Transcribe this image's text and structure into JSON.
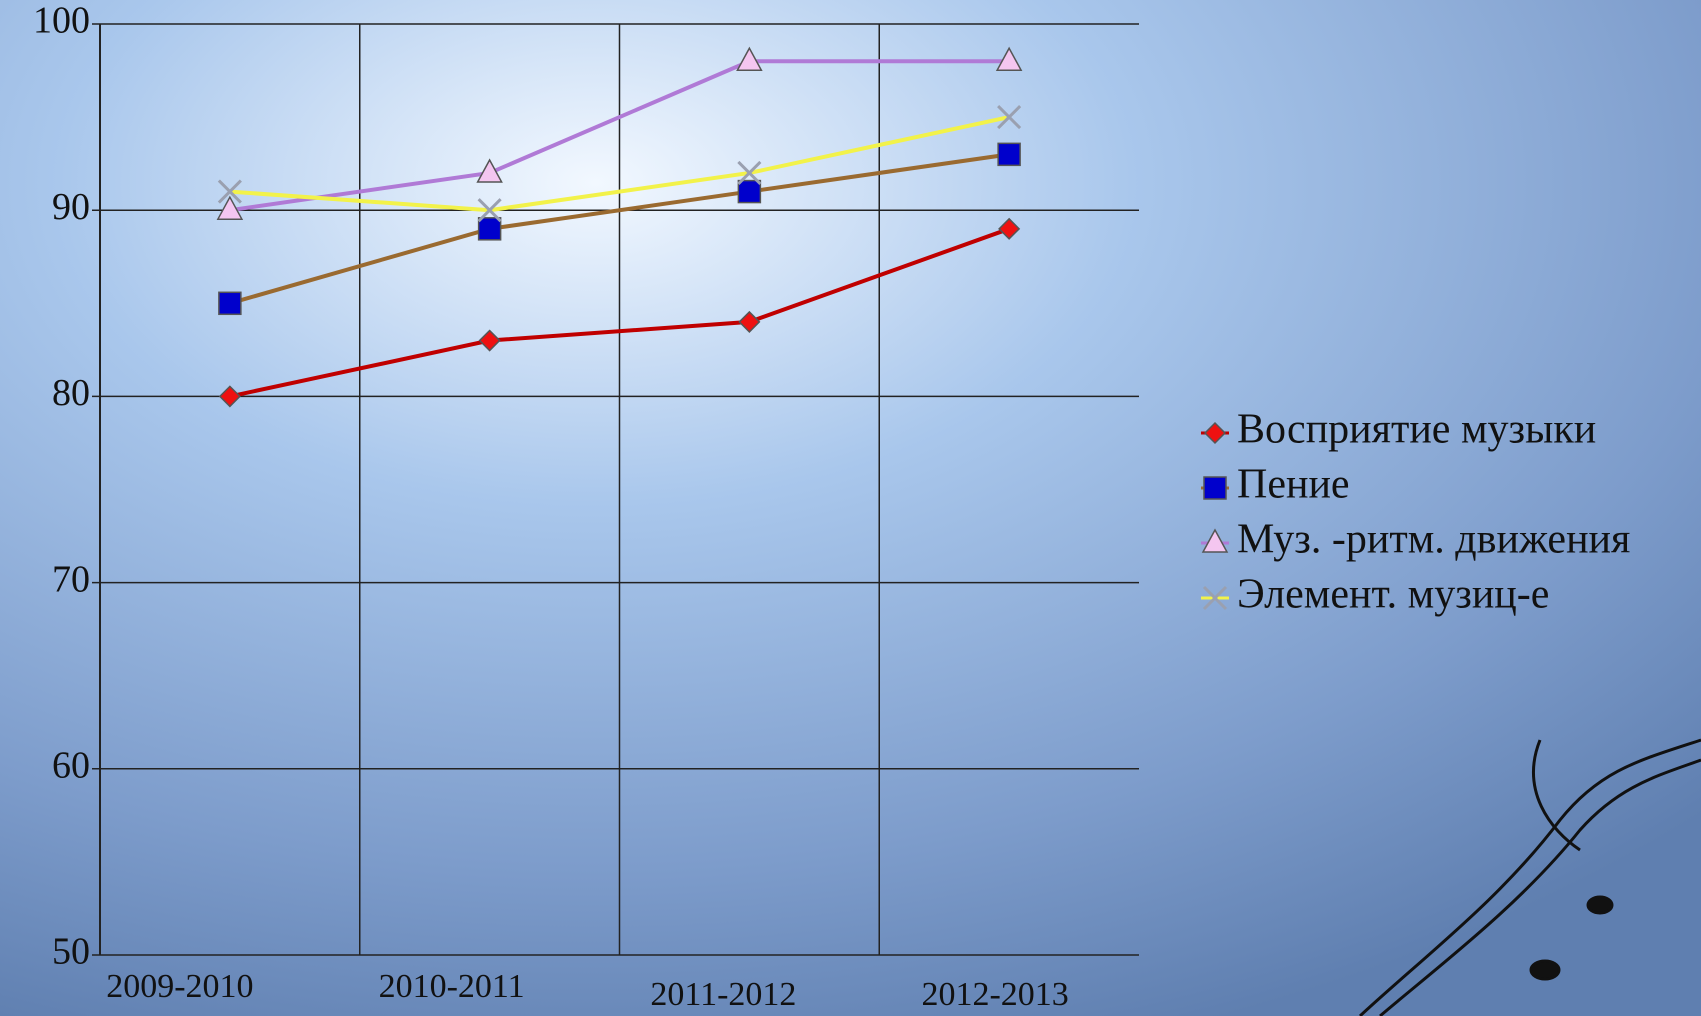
{
  "chart_data": {
    "type": "line",
    "categories": [
      "2009-2010",
      "2010-2011",
      "2011-2012",
      "2012-2013"
    ],
    "series": [
      {
        "name": "Восприятие музыки",
        "color": "#c00000",
        "marker": "diamond",
        "marker_color": "#ee1111",
        "values": [
          80,
          83,
          84,
          89
        ]
      },
      {
        "name": "Пение",
        "color": "#9a6a30",
        "marker": "square",
        "marker_color": "#0000cc",
        "values": [
          85,
          89,
          91,
          93
        ]
      },
      {
        "name": "Муз. -ритм. движения",
        "color": "#b07ad6",
        "marker": "triangle",
        "marker_color": "#f4c6f0",
        "values": [
          90,
          92,
          98,
          98
        ]
      },
      {
        "name": "Элемент. музиц-е",
        "color": "#f2f24a",
        "marker": "x",
        "marker_color": "#9aa0b0",
        "values": [
          91,
          90,
          92,
          95
        ]
      }
    ],
    "ylim": [
      50,
      100
    ],
    "yticks": [
      50,
      60,
      70,
      80,
      90,
      100
    ],
    "grid": true,
    "legend": "right"
  }
}
